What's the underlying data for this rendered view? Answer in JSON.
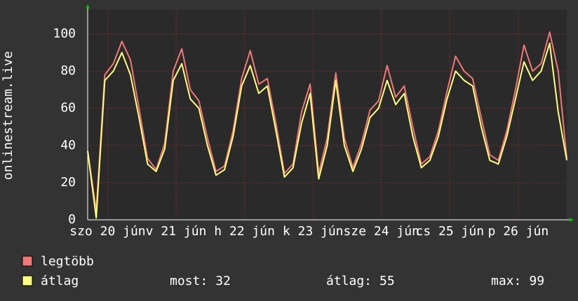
{
  "chart_data": {
    "type": "line",
    "y_label": "onlinestream.live",
    "x": [
      0,
      3,
      6,
      9,
      12,
      15,
      18,
      21,
      24,
      27,
      30,
      33,
      36,
      39,
      42,
      45,
      48,
      51,
      54,
      57,
      60,
      63,
      66,
      69,
      72,
      75,
      78,
      81,
      84,
      87,
      90,
      93,
      96,
      99,
      102,
      105,
      108,
      111,
      114,
      117,
      120,
      123,
      126,
      129,
      132,
      135,
      138,
      141,
      144,
      147,
      150,
      153,
      156,
      159,
      162,
      165,
      168
    ],
    "xlim": [
      0,
      168
    ],
    "xticks": [
      {
        "value": 7,
        "label": "szo 20 jún"
      },
      {
        "value": 31,
        "label": "v 21 jún"
      },
      {
        "value": 55,
        "label": "h 22 jún"
      },
      {
        "value": 79,
        "label": "k 23 jún"
      },
      {
        "value": 103,
        "label": "sze 24 jún"
      },
      {
        "value": 127,
        "label": "cs 25 jún"
      },
      {
        "value": 151,
        "label": "p 26 jún"
      }
    ],
    "ylim": [
      0,
      113
    ],
    "yticks": [
      0,
      20,
      40,
      60,
      80,
      100
    ],
    "grid": true,
    "series": [
      {
        "name": "legtöbb",
        "color": "#f07878",
        "values": [
          37,
          5,
          78,
          84,
          96,
          86,
          60,
          33,
          27,
          41,
          80,
          92,
          70,
          64,
          44,
          26,
          29,
          48,
          76,
          91,
          73,
          76,
          52,
          25,
          30,
          58,
          73,
          25,
          44,
          79,
          44,
          28,
          41,
          59,
          64,
          83,
          66,
          72,
          50,
          30,
          34,
          48,
          69,
          88,
          80,
          76,
          55,
          35,
          32,
          48,
          70,
          94,
          80,
          84,
          101,
          80,
          33
        ]
      },
      {
        "name": "átlag",
        "color": "#ffff80",
        "values": [
          37,
          1,
          75,
          80,
          90,
          78,
          55,
          30,
          26,
          38,
          75,
          84,
          65,
          60,
          40,
          24,
          27,
          45,
          72,
          83,
          68,
          72,
          48,
          23,
          28,
          52,
          68,
          22,
          40,
          75,
          40,
          26,
          38,
          55,
          60,
          75,
          62,
          68,
          45,
          28,
          32,
          45,
          65,
          80,
          75,
          72,
          50,
          32,
          30,
          45,
          65,
          85,
          75,
          80,
          95,
          58,
          32
        ]
      }
    ],
    "stats": [
      {
        "label": "most:",
        "value": 32
      },
      {
        "label": "átlag:",
        "value": 55
      },
      {
        "label": "max:",
        "value": 99
      }
    ]
  }
}
